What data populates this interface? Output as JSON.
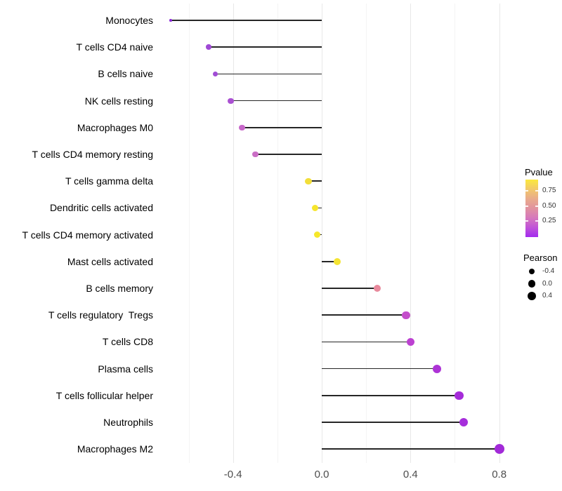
{
  "chart_data": {
    "type": "scatter",
    "variant": "lollipop",
    "title": "",
    "xlabel": "",
    "ylabel": "",
    "x_axis": {
      "tick_labels": [
        "-0.4",
        "0.0",
        "0.4",
        "0.8"
      ],
      "tick_values": [
        -0.4,
        0.0,
        0.4,
        0.8
      ],
      "minor_tick_values": [
        -0.6,
        -0.2,
        0.2,
        0.6
      ],
      "range": [
        -0.75,
        0.87
      ]
    },
    "grid": {
      "vertical": true,
      "horizontal": false
    },
    "legend_position": "right",
    "points": [
      {
        "label": "Monocytes",
        "pearson": -0.68,
        "color": "#8c2bd9",
        "radius": 1.8
      },
      {
        "label": "T cells CD4 naive",
        "pearson": -0.51,
        "color": "#9f49d5",
        "radius": 3.8
      },
      {
        "label": "B cells naive",
        "pearson": -0.48,
        "color": "#a14cd5",
        "radius": 3.9
      },
      {
        "label": "NK cells resting",
        "pearson": -0.41,
        "color": "#aa50d2",
        "radius": 4.1
      },
      {
        "label": "Macrophages M0",
        "pearson": -0.36,
        "color": "#c767c9",
        "radius": 4.3
      },
      {
        "label": "T cells CD4 memory resting",
        "pearson": -0.3,
        "color": "#ca6ec5",
        "radius": 4.4
      },
      {
        "label": "T cells gamma delta",
        "pearson": -0.06,
        "color": "#f2de39",
        "radius": 4.6
      },
      {
        "label": "Dendritic cells activated",
        "pearson": -0.03,
        "color": "#f6e52c",
        "radius": 4.8
      },
      {
        "label": "T cells CD4 memory activated",
        "pearson": -0.02,
        "color": "#f6e72a",
        "radius": 4.8
      },
      {
        "label": "Mast cells activated",
        "pearson": 0.07,
        "color": "#f4e433",
        "radius": 5.0
      },
      {
        "label": "B cells memory",
        "pearson": 0.25,
        "color": "#e8899c",
        "radius": 5.4
      },
      {
        "label": "T cells regulatory  Tregs",
        "pearson": 0.38,
        "color": "#c44ecb",
        "radius": 5.7
      },
      {
        "label": "T cells CD8",
        "pearson": 0.4,
        "color": "#bc41d1",
        "radius": 5.8
      },
      {
        "label": "Plasma cells",
        "pearson": 0.52,
        "color": "#ad33d6",
        "radius": 6.0
      },
      {
        "label": "T cells follicular helper",
        "pearson": 0.62,
        "color": "#a52bd9",
        "radius": 6.3
      },
      {
        "label": "Neutrophils",
        "pearson": 0.64,
        "color": "#a62edb",
        "radius": 6.3
      },
      {
        "label": "Macrophages M2",
        "pearson": 0.8,
        "color": "#a22ad8",
        "radius": 6.9
      }
    ]
  },
  "legend": {
    "pvalue": {
      "title": "Pvalue",
      "tick_labels": [
        "0.75",
        "0.50",
        "0.25"
      ],
      "gradient_stops_top_to_bottom": [
        "#fbe93d",
        "#f2c96a",
        "#e9ab8b",
        "#e1929f",
        "#d678bd",
        "#c053d8",
        "#a32aee"
      ]
    },
    "pearson": {
      "title": "Pearson",
      "dot_color": "#000000",
      "items": [
        {
          "label": "-0.4",
          "radius": 4.3
        },
        {
          "label": "0.0",
          "radius": 5.3
        },
        {
          "label": "0.4",
          "radius": 6.3
        }
      ]
    }
  },
  "colors": {
    "stick": "#262626",
    "grid_major": "#e8e8e8",
    "grid_minor": "#f4f4f4",
    "axis_text": "#4d4d4d",
    "label_text": "#000000",
    "background": "#ffffff"
  }
}
